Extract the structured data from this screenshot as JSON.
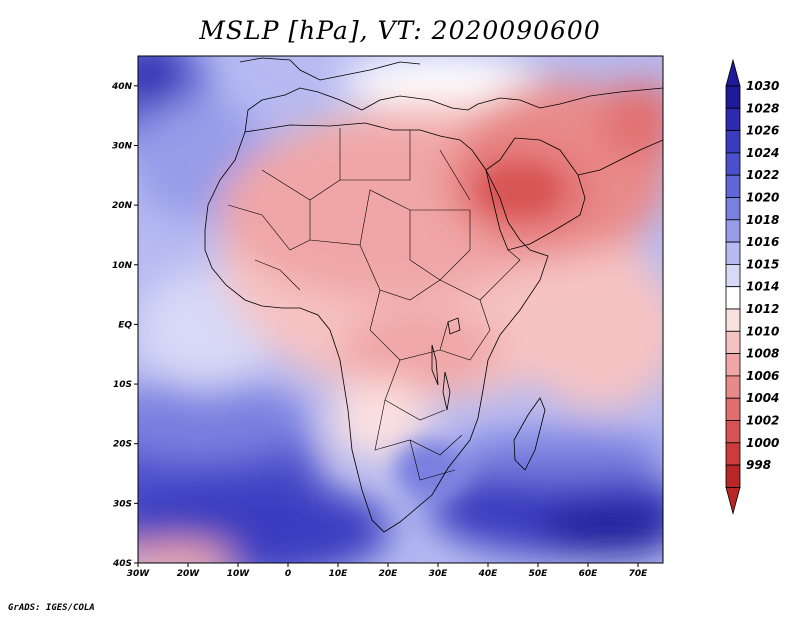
{
  "title": "MSLP [hPa], VT: 2020090600",
  "footer": "GrADS: IGES/COLA",
  "map": {
    "lon_range": [
      -30,
      75
    ],
    "lat_range": [
      -40,
      45
    ],
    "lat_ticks": [
      {
        "value": 40,
        "label": "40N"
      },
      {
        "value": 30,
        "label": "30N"
      },
      {
        "value": 20,
        "label": "20N"
      },
      {
        "value": 10,
        "label": "10N"
      },
      {
        "value": 0,
        "label": "EQ"
      },
      {
        "value": -10,
        "label": "10S"
      },
      {
        "value": -20,
        "label": "20S"
      },
      {
        "value": -30,
        "label": "30S"
      },
      {
        "value": -40,
        "label": "40S"
      }
    ],
    "lon_ticks": [
      {
        "value": -30,
        "label": "30W"
      },
      {
        "value": -20,
        "label": "20W"
      },
      {
        "value": -10,
        "label": "10W"
      },
      {
        "value": 0,
        "label": "0"
      },
      {
        "value": 10,
        "label": "10E"
      },
      {
        "value": 20,
        "label": "20E"
      },
      {
        "value": 30,
        "label": "30E"
      },
      {
        "value": 40,
        "label": "40E"
      },
      {
        "value": 50,
        "label": "50E"
      },
      {
        "value": 60,
        "label": "60E"
      },
      {
        "value": 70,
        "label": "70E"
      }
    ]
  },
  "colorbar": {
    "unit": "hPa",
    "levels": [
      {
        "label": "1030",
        "color": "#1e1a9a"
      },
      {
        "label": "1028",
        "color": "#2b2ab0"
      },
      {
        "label": "1026",
        "color": "#3a3cc0"
      },
      {
        "label": "1024",
        "color": "#4b50cc"
      },
      {
        "label": "1022",
        "color": "#6066d6"
      },
      {
        "label": "1020",
        "color": "#7a80e0"
      },
      {
        "label": "1018",
        "color": "#979ce9"
      },
      {
        "label": "1016",
        "color": "#b6baf1"
      },
      {
        "label": "1015",
        "color": "#d7d9f7"
      },
      {
        "label": "1014",
        "color": "#ffffff"
      },
      {
        "label": "1012",
        "color": "#fbe0e0"
      },
      {
        "label": "1010",
        "color": "#f6c3c3"
      },
      {
        "label": "1008",
        "color": "#f0a6a6"
      },
      {
        "label": "1006",
        "color": "#e98a8a"
      },
      {
        "label": "1004",
        "color": "#e26f6f"
      },
      {
        "label": "1002",
        "color": "#d85454"
      },
      {
        "label": "1000",
        "color": "#cc3c3c"
      },
      {
        "label": "998",
        "color": "#b82626"
      }
    ]
  }
}
